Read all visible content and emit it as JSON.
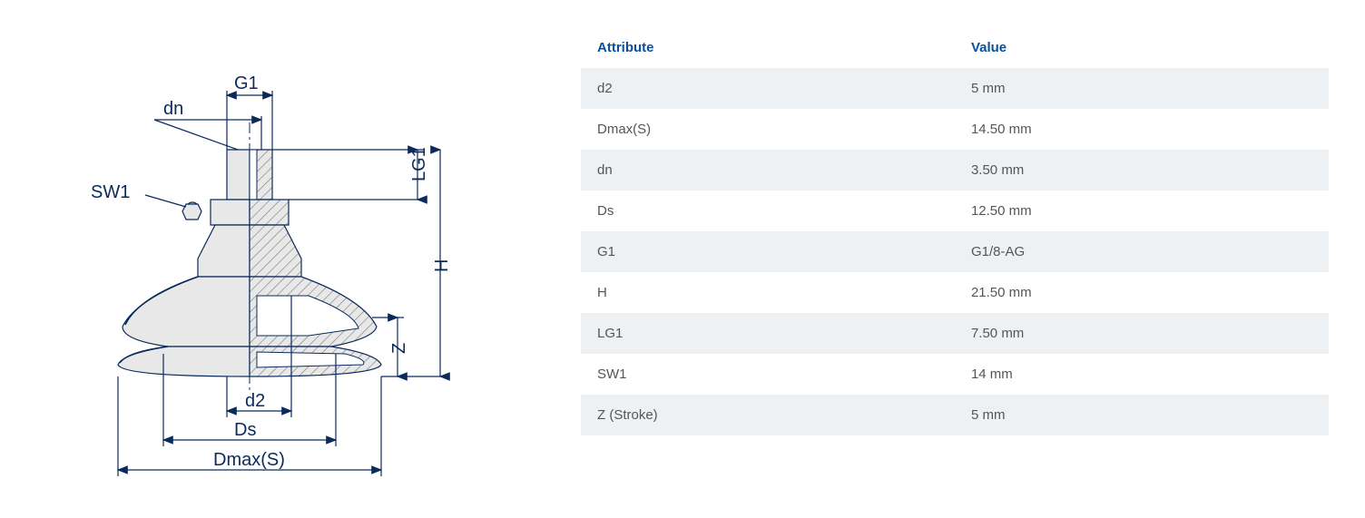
{
  "table": {
    "header_attr": "Attribute",
    "header_val": "Value",
    "rows": [
      {
        "attr": "d2",
        "val": "5 mm"
      },
      {
        "attr": "Dmax(S)",
        "val": "14.50 mm"
      },
      {
        "attr": "dn",
        "val": "3.50 mm"
      },
      {
        "attr": "Ds",
        "val": "12.50 mm"
      },
      {
        "attr": "G1",
        "val": "G1/8-AG"
      },
      {
        "attr": "H",
        "val": "21.50 mm"
      },
      {
        "attr": "LG1",
        "val": "7.50 mm"
      },
      {
        "attr": "SW1",
        "val": "14 mm"
      },
      {
        "attr": "Z (Stroke)",
        "val": "5 mm"
      }
    ]
  },
  "diagram": {
    "labels": {
      "G1": "G1",
      "dn": "dn",
      "SW1": "SW1",
      "LG1": "LG1",
      "H": "H",
      "Z": "Z",
      "d2": "d2",
      "Ds": "Ds",
      "DmaxS": "Dmax(S)"
    },
    "colors": {
      "line": "#0a2a5c",
      "fill_light": "#e8e8e8",
      "hatch": "#8a8a8a",
      "background": "#ffffff"
    },
    "stroke_width": 1.2,
    "label_fontsize": 20
  },
  "theme": {
    "header_color": "#0a4f9c",
    "row_odd_bg": "#eef1f4",
    "row_even_bg": "#ffffff",
    "text_color": "#555555",
    "font_family": "Segoe UI, Arial, sans-serif",
    "cell_fontsize": 15
  }
}
